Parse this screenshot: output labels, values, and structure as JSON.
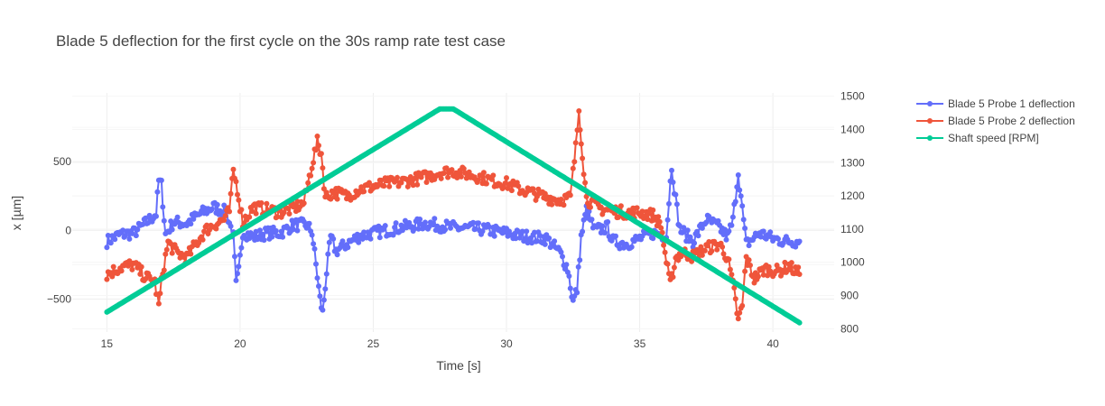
{
  "chart_data": {
    "type": "line",
    "title": "Blade 5 deflection for the first cycle on the 30s ramp rate test case",
    "xlabel": "Time [s]",
    "ylabel": "x [µm]",
    "y2label": "",
    "xlim": [
      13.7,
      42.3
    ],
    "ylim": [
      -740,
      1000
    ],
    "y2lim": [
      790,
      1510
    ],
    "x_ticks": [
      15,
      20,
      25,
      30,
      35,
      40
    ],
    "y_ticks": [
      -500,
      0,
      500
    ],
    "y_tick_labels": [
      "−500",
      "0",
      "500"
    ],
    "y2_ticks": [
      800,
      900,
      1000,
      1100,
      1200,
      1300,
      1400,
      1500
    ],
    "grid": true,
    "legend_position": "top-right",
    "series": [
      {
        "name": "Blade 5 Probe 1 deflection",
        "axis": "y",
        "color": "#636efa",
        "mode": "lines+markers",
        "keypoints": [
          [
            15.0,
            -80
          ],
          [
            15.5,
            -30
          ],
          [
            16.0,
            -20
          ],
          [
            16.5,
            60
          ],
          [
            16.85,
            120
          ],
          [
            16.95,
            360
          ],
          [
            17.05,
            330
          ],
          [
            17.2,
            -30
          ],
          [
            17.5,
            60
          ],
          [
            18.0,
            50
          ],
          [
            18.5,
            120
          ],
          [
            19.0,
            170
          ],
          [
            19.5,
            130
          ],
          [
            19.75,
            -50
          ],
          [
            19.85,
            -400
          ],
          [
            19.95,
            -300
          ],
          [
            20.1,
            -10
          ],
          [
            20.5,
            -50
          ],
          [
            21.0,
            -20
          ],
          [
            21.5,
            -20
          ],
          [
            22.0,
            40
          ],
          [
            22.5,
            40
          ],
          [
            22.7,
            -10
          ],
          [
            22.85,
            -250
          ],
          [
            23.0,
            -500
          ],
          [
            23.1,
            -600
          ],
          [
            23.25,
            -300
          ],
          [
            23.4,
            -50
          ],
          [
            23.6,
            -150
          ],
          [
            24.0,
            -100
          ],
          [
            24.5,
            -40
          ],
          [
            25.0,
            -20
          ],
          [
            26.0,
            20
          ],
          [
            27.0,
            50
          ],
          [
            28.0,
            20
          ],
          [
            29.0,
            10
          ],
          [
            30.0,
            -20
          ],
          [
            30.5,
            -40
          ],
          [
            31.0,
            -50
          ],
          [
            31.5,
            -60
          ],
          [
            32.0,
            -160
          ],
          [
            32.3,
            -280
          ],
          [
            32.5,
            -520
          ],
          [
            32.65,
            -430
          ],
          [
            32.8,
            -50
          ],
          [
            33.0,
            150
          ],
          [
            33.3,
            0
          ],
          [
            33.8,
            20
          ],
          [
            34.0,
            -80
          ],
          [
            34.5,
            -100
          ],
          [
            35.0,
            -60
          ],
          [
            35.5,
            -20
          ],
          [
            36.0,
            -40
          ],
          [
            36.1,
            220
          ],
          [
            36.2,
            470
          ],
          [
            36.35,
            230
          ],
          [
            36.5,
            10
          ],
          [
            37.0,
            -80
          ],
          [
            37.5,
            80
          ],
          [
            38.0,
            20
          ],
          [
            38.3,
            -50
          ],
          [
            38.5,
            70
          ],
          [
            38.6,
            250
          ],
          [
            38.7,
            430
          ],
          [
            38.85,
            150
          ],
          [
            39.0,
            -100
          ],
          [
            39.5,
            -20
          ],
          [
            40.0,
            -60
          ],
          [
            40.5,
            -80
          ],
          [
            41.0,
            -80
          ]
        ]
      },
      {
        "name": "Blade 5 Probe 2 deflection",
        "axis": "y",
        "color": "#ef553b",
        "mode": "lines+markers",
        "keypoints": [
          [
            15.0,
            -320
          ],
          [
            15.5,
            -270
          ],
          [
            16.0,
            -250
          ],
          [
            16.4,
            -330
          ],
          [
            16.8,
            -380
          ],
          [
            16.95,
            -550
          ],
          [
            17.1,
            -300
          ],
          [
            17.3,
            -90
          ],
          [
            17.6,
            -160
          ],
          [
            18.0,
            -200
          ],
          [
            18.3,
            -110
          ],
          [
            18.7,
            0
          ],
          [
            19.0,
            40
          ],
          [
            19.4,
            80
          ],
          [
            19.6,
            140
          ],
          [
            19.75,
            430
          ],
          [
            19.9,
            300
          ],
          [
            20.1,
            60
          ],
          [
            20.5,
            170
          ],
          [
            21.0,
            150
          ],
          [
            21.5,
            130
          ],
          [
            22.0,
            160
          ],
          [
            22.4,
            200
          ],
          [
            22.7,
            480
          ],
          [
            22.9,
            640
          ],
          [
            23.05,
            560
          ],
          [
            23.2,
            240
          ],
          [
            23.5,
            280
          ],
          [
            24.0,
            250
          ],
          [
            24.5,
            300
          ],
          [
            25.0,
            320
          ],
          [
            25.5,
            340
          ],
          [
            26.0,
            350
          ],
          [
            26.5,
            370
          ],
          [
            27.0,
            390
          ],
          [
            27.5,
            420
          ],
          [
            28.0,
            430
          ],
          [
            28.5,
            410
          ],
          [
            29.0,
            390
          ],
          [
            29.5,
            360
          ],
          [
            30.0,
            340
          ],
          [
            30.5,
            300
          ],
          [
            31.0,
            270
          ],
          [
            31.5,
            240
          ],
          [
            32.0,
            220
          ],
          [
            32.4,
            240
          ],
          [
            32.6,
            600
          ],
          [
            32.72,
            880
          ],
          [
            32.85,
            560
          ],
          [
            33.0,
            230
          ],
          [
            33.5,
            160
          ],
          [
            34.0,
            140
          ],
          [
            34.5,
            130
          ],
          [
            35.0,
            130
          ],
          [
            35.5,
            110
          ],
          [
            35.8,
            40
          ],
          [
            36.0,
            -230
          ],
          [
            36.15,
            -400
          ],
          [
            36.35,
            -200
          ],
          [
            36.6,
            -160
          ],
          [
            37.0,
            -190
          ],
          [
            37.5,
            -130
          ],
          [
            38.0,
            -100
          ],
          [
            38.3,
            -200
          ],
          [
            38.55,
            -450
          ],
          [
            38.7,
            -660
          ],
          [
            38.85,
            -550
          ],
          [
            39.0,
            -200
          ],
          [
            39.3,
            -350
          ],
          [
            39.7,
            -280
          ],
          [
            40.2,
            -300
          ],
          [
            40.6,
            -260
          ],
          [
            41.0,
            -320
          ]
        ]
      },
      {
        "name": "Shaft speed [RPM]",
        "axis": "y2",
        "color": "#00cc96",
        "mode": "lines+markers",
        "keypoints": [
          [
            15.0,
            850
          ],
          [
            27.5,
            1462
          ],
          [
            28.0,
            1462
          ],
          [
            41.0,
            818
          ]
        ]
      }
    ]
  }
}
